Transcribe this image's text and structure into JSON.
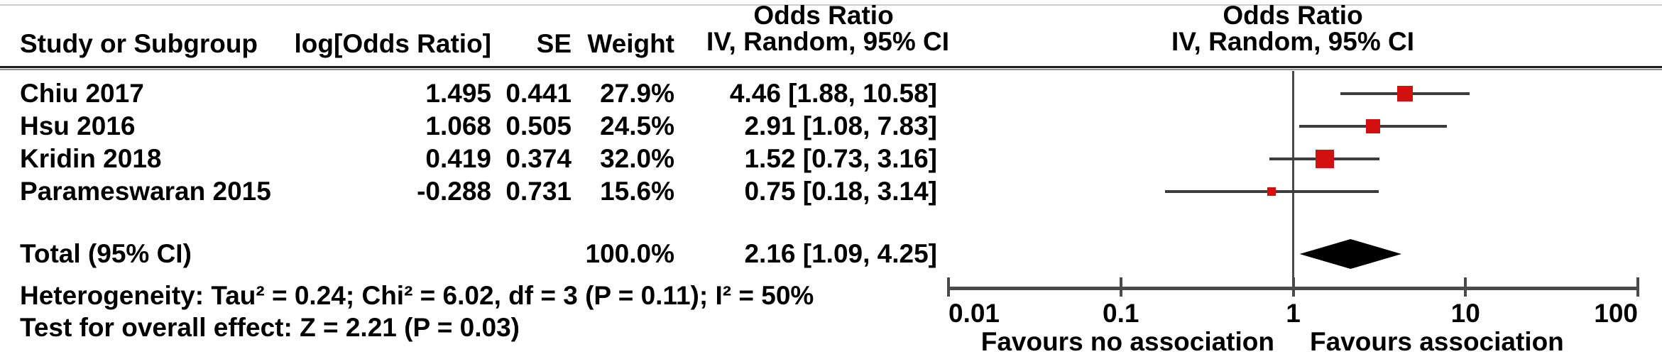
{
  "table_header": {
    "study": "Study or Subgroup",
    "log_or": "log[Odds Ratio]",
    "se": "SE",
    "weight": "Weight",
    "effect_line1": "Odds Ratio",
    "effect_line2": "IV, Random, 95% CI"
  },
  "plot_header": {
    "line1": "Odds Ratio",
    "line2": "IV, Random, 95% CI"
  },
  "colors": {
    "marker": "#d40f0f",
    "ci_line": "#3d3d3d",
    "axis": "#4a4a4a",
    "diamond": "#000000",
    "rule_dark": "#1f1f1f",
    "rule_light": "#8f8f8f",
    "top_edge": "#b5b5b5"
  },
  "chart_data": {
    "type": "forest",
    "effect_measure": "Odds Ratio",
    "model": "IV, Random, 95% CI",
    "studies": [
      {
        "label": "Chiu 2017",
        "log_or": "1.495",
        "se": "0.441",
        "weight": "27.9%",
        "weight_pct": 27.9,
        "ci_text": "4.46 [1.88, 10.58]",
        "or": 4.46,
        "lo": 1.88,
        "hi": 10.58
      },
      {
        "label": "Hsu 2016",
        "log_or": "1.068",
        "se": "0.505",
        "weight": "24.5%",
        "weight_pct": 24.5,
        "ci_text": "2.91 [1.08, 7.83]",
        "or": 2.91,
        "lo": 1.08,
        "hi": 7.83
      },
      {
        "label": "Kridin 2018",
        "log_or": "0.419",
        "se": "0.374",
        "weight": "32.0%",
        "weight_pct": 32.0,
        "ci_text": "1.52 [0.73, 3.16]",
        "or": 1.52,
        "lo": 0.73,
        "hi": 3.16
      },
      {
        "label": "Parameswaran 2015",
        "log_or": "-0.288",
        "se": "0.731",
        "weight": "15.6%",
        "weight_pct": 15.6,
        "ci_text": "0.75 [0.18, 3.14]",
        "or": 0.75,
        "lo": 0.18,
        "hi": 3.14
      }
    ],
    "total": {
      "label": "Total (95% CI)",
      "weight": "100.0%",
      "ci_text": "2.16 [1.09, 4.25]",
      "or": 2.16,
      "lo": 1.09,
      "hi": 4.25
    },
    "axis": {
      "scale": "log",
      "min": 0.01,
      "max": 100,
      "tick_values": [
        0.01,
        0.1,
        1,
        10,
        100
      ],
      "tick_labels": [
        "0.01",
        "0.1",
        "1",
        "10",
        "100"
      ],
      "reference_line": 1,
      "left_label": "Favours no association",
      "right_label": "Favours association"
    },
    "footnotes": {
      "heterogeneity": "Heterogeneity: Tau² = 0.24; Chi² = 6.02, df = 3 (P = 0.11); I² = 50%",
      "overall_effect": "Test for overall effect: Z = 2.21 (P = 0.03)"
    }
  }
}
